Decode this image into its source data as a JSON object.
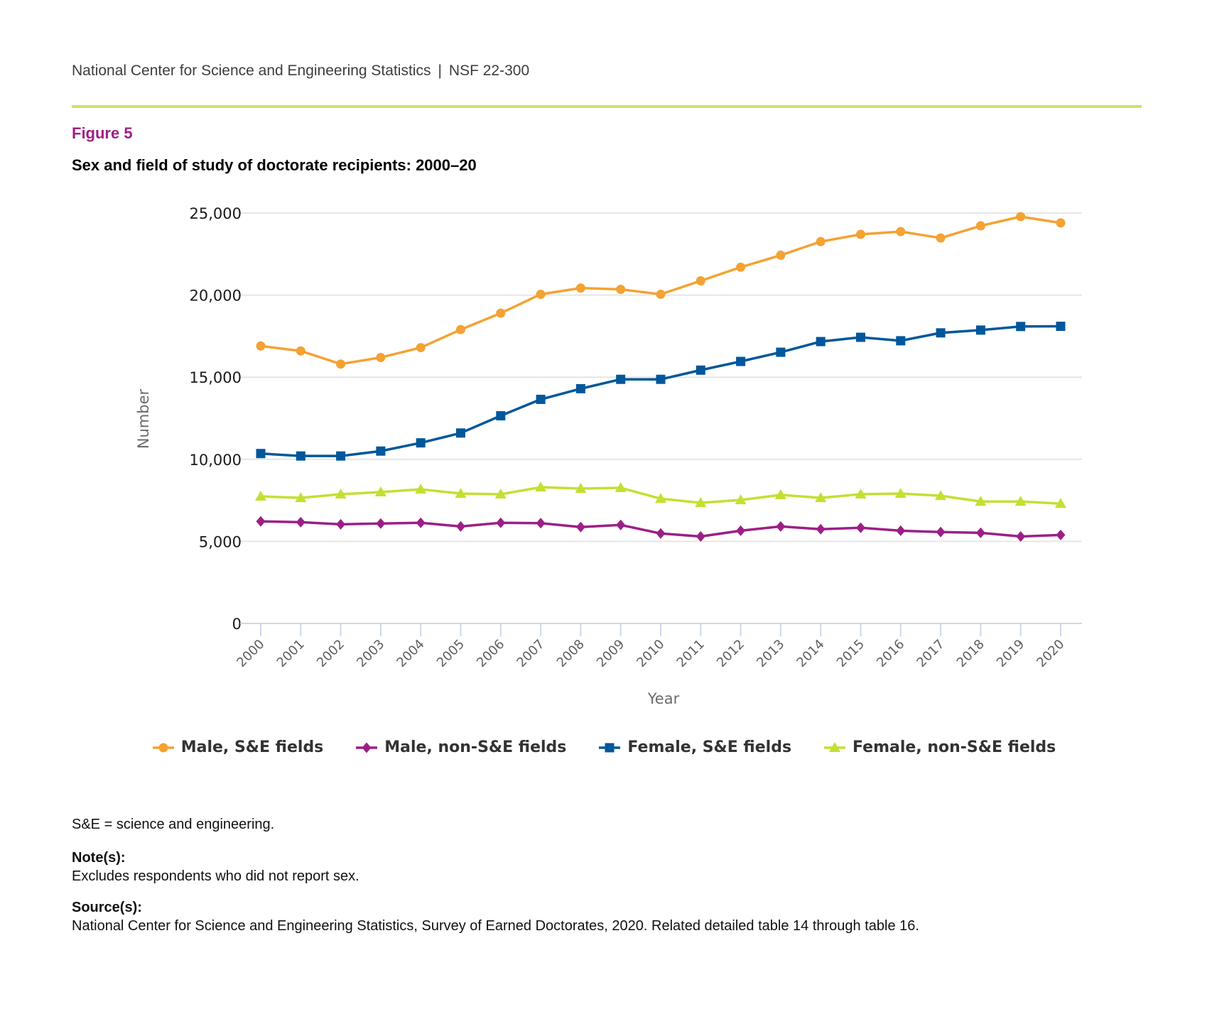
{
  "header": {
    "org": "National Center for Science and Engineering Statistics",
    "separator": "|",
    "report_id": "NSF 22-300"
  },
  "figure": {
    "label": "Figure 5",
    "title": "Sex and field of study of doctorate recipients: 2000–20"
  },
  "colors": {
    "rule": "#cde26a",
    "figure_label": "#9c2086",
    "male_se": "#f4a233",
    "male_non_se": "#9c1f86",
    "female_se": "#00579b",
    "female_non_se": "#c3e032",
    "grid": "#e6e6e6",
    "x_axis": "#cdd7ea"
  },
  "chart_data": {
    "type": "line",
    "title": "Sex and field of study of doctorate recipients: 2000–20",
    "xlabel": "Year",
    "ylabel": "Number",
    "ylim": [
      0,
      25000
    ],
    "yticks": [
      0,
      5000,
      10000,
      15000,
      20000,
      25000
    ],
    "ytick_labels": [
      "0",
      "5,000",
      "10,000",
      "15,000",
      "20,000",
      "25,000"
    ],
    "grid": true,
    "legend_position": "bottom",
    "x": [
      "2000",
      "2001",
      "2002",
      "2003",
      "2004",
      "2005",
      "2006",
      "2007",
      "2008",
      "2009",
      "2010",
      "2011",
      "2012",
      "2013",
      "2014",
      "2015",
      "2016",
      "2017",
      "2018",
      "2019",
      "2020"
    ],
    "series": [
      {
        "name": "Male, S&E fields",
        "color_key": "male_se",
        "marker": "circle",
        "values": [
          16900,
          16600,
          15800,
          16200,
          16800,
          17900,
          18900,
          20050,
          20430,
          20350,
          20050,
          20870,
          21700,
          22430,
          23260,
          23700,
          23870,
          23480,
          24220,
          24780,
          24400
        ]
      },
      {
        "name": "Male, non-S&E fields",
        "color_key": "male_non_se",
        "marker": "diamond",
        "values": [
          6220,
          6170,
          6040,
          6090,
          6130,
          5910,
          6130,
          6110,
          5870,
          6000,
          5480,
          5300,
          5650,
          5910,
          5740,
          5830,
          5650,
          5570,
          5520,
          5300,
          5390
        ]
      },
      {
        "name": "Female, S&E fields",
        "color_key": "female_se",
        "marker": "square",
        "values": [
          10350,
          10200,
          10200,
          10500,
          11000,
          11600,
          12650,
          13650,
          14300,
          14870,
          14870,
          15430,
          15960,
          16520,
          17170,
          17430,
          17220,
          17700,
          17870,
          18090,
          18100
        ]
      },
      {
        "name": "Female, non-S&E fields",
        "color_key": "female_non_se",
        "marker": "triangle",
        "values": [
          7740,
          7650,
          7870,
          8000,
          8170,
          7910,
          7870,
          8300,
          8220,
          8260,
          7600,
          7350,
          7520,
          7830,
          7650,
          7870,
          7910,
          7780,
          7430,
          7430,
          7300
        ]
      }
    ]
  },
  "footnotes": {
    "abbreviation": "S&E = science and engineering.",
    "notes_heading": "Note(s):",
    "notes": "Excludes respondents who did not report sex.",
    "sources_heading": "Source(s):",
    "sources": "National Center for Science and Engineering Statistics, Survey of Earned Doctorates, 2020. Related detailed table 14 through table 16."
  }
}
